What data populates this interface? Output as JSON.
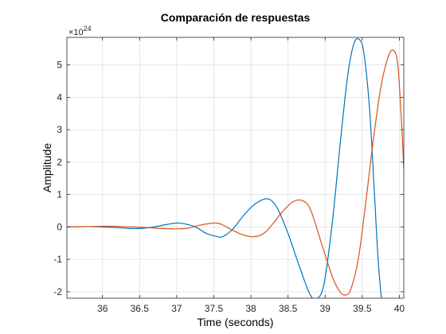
{
  "chart_data": {
    "type": "line",
    "title": "Comparación de respuestas",
    "xlabel": "Time (seconds)",
    "ylabel": "Amplitude",
    "xlim": [
      35.52,
      40.06
    ],
    "ylim": [
      -2.2,
      5.85
    ],
    "grid": true,
    "y_exponent_label": "×10",
    "y_exponent_power": "24",
    "x_ticks": [
      36,
      36.5,
      37,
      37.5,
      38,
      38.5,
      39,
      39.5,
      40
    ],
    "x_tick_labels": [
      "36",
      "36.5",
      "37",
      "37.5",
      "38",
      "38.5",
      "39",
      "39.5",
      "40"
    ],
    "y_ticks": [
      -2,
      -1,
      0,
      1,
      2,
      3,
      4,
      5
    ],
    "y_tick_labels": [
      "-2",
      "-1",
      "0",
      "1",
      "2",
      "3",
      "4",
      "5"
    ],
    "series": [
      {
        "color": "#0072bd",
        "x": [
          35.52,
          35.8,
          36.0,
          36.2,
          36.4,
          36.55,
          36.7,
          36.85,
          37.0,
          37.1,
          37.25,
          37.4,
          37.55,
          37.62,
          37.75,
          37.9,
          38.05,
          38.22,
          38.35,
          38.5,
          38.65,
          38.8,
          38.9,
          38.99,
          39.1,
          39.2,
          39.3,
          39.38,
          39.45,
          39.52,
          39.6,
          39.67,
          39.72,
          39.8
        ],
        "y": [
          0.0,
          0.01,
          0.0,
          -0.02,
          -0.05,
          -0.04,
          0.0,
          0.07,
          0.12,
          0.1,
          0.0,
          -0.2,
          -0.3,
          -0.3,
          -0.08,
          0.35,
          0.7,
          0.87,
          0.6,
          -0.2,
          -1.2,
          -2.1,
          -2.2,
          -1.7,
          0.2,
          2.5,
          4.6,
          5.6,
          5.8,
          5.4,
          3.6,
          0.8,
          -1.2,
          -3.2
        ]
      },
      {
        "color": "#d95319",
        "x": [
          35.52,
          35.8,
          36.0,
          36.2,
          36.4,
          36.6,
          36.8,
          37.0,
          37.15,
          37.3,
          37.5,
          37.6,
          37.75,
          37.9,
          38.05,
          38.2,
          38.4,
          38.55,
          38.68,
          38.8,
          38.95,
          39.1,
          39.2,
          39.28,
          39.35,
          39.45,
          39.55,
          39.65,
          39.75,
          39.85,
          39.92,
          39.98,
          40.03,
          40.06
        ],
        "y": [
          0.0,
          0.01,
          0.02,
          0.02,
          0.0,
          -0.02,
          -0.05,
          -0.06,
          -0.04,
          0.05,
          0.12,
          0.08,
          -0.1,
          -0.25,
          -0.3,
          -0.15,
          0.4,
          0.75,
          0.82,
          0.55,
          -0.5,
          -1.55,
          -2.0,
          -2.1,
          -1.9,
          -0.95,
          0.8,
          2.7,
          4.3,
          5.25,
          5.45,
          5.0,
          3.2,
          1.8
        ]
      }
    ]
  }
}
